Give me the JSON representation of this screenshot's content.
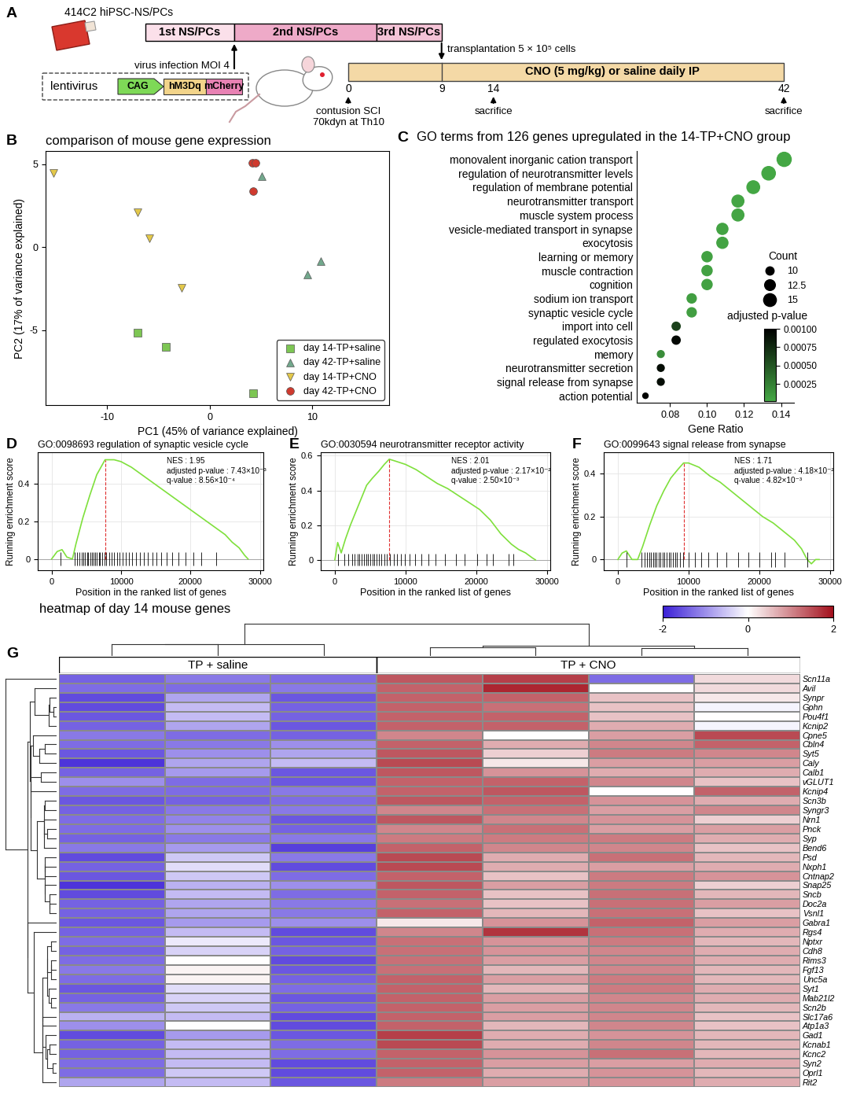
{
  "panel_A": {
    "label": "A",
    "source": "414C2 hiPSC-NS/PCs",
    "culture_stages": [
      "1st NS/PCs",
      "2nd NS/PCs",
      "3rd NS/PCs"
    ],
    "virus": "virus infection MOI 4",
    "construct": {
      "name": "lentivirus",
      "parts": [
        "CAG",
        "hM3Dq",
        "mCherry"
      ]
    },
    "transplantation": "transplantation 5 × 10⁵ cells",
    "treatment": "CNO (5 mg/kg) or saline daily IP",
    "days": [
      0,
      9,
      14,
      42
    ],
    "events": [
      {
        "day": 0,
        "label": "contusion SCI\n70kdyn at Th10"
      },
      {
        "day": 14,
        "label": "sacrifice"
      },
      {
        "day": 42,
        "label": "sacrifice"
      }
    ]
  },
  "chart_data": [
    {
      "panel": "B",
      "type": "scatter",
      "title": "comparison of mouse gene expression",
      "x_label": "PC1 (45% of variance explained)",
      "y_label": "PC2 (17% of variance explained)",
      "xlim": [
        -16,
        17.5
      ],
      "ylim": [
        -9.5,
        5.8
      ],
      "xticks": [
        -10,
        0,
        10
      ],
      "yticks": [
        -5,
        0,
        5
      ],
      "legend": "lower right",
      "series": [
        {
          "name": "day 14-TP+saline",
          "color": "#7dc653",
          "marker": "square",
          "x": [
            -7.0,
            -4.3,
            4.2
          ],
          "y": [
            -5.16,
            -6.0,
            -8.8
          ]
        },
        {
          "name": "day 42-TP+saline",
          "color": "#72a88c",
          "marker": "triangle",
          "x": [
            5.1,
            10.8,
            9.5
          ],
          "y": [
            4.27,
            -0.85,
            -1.64
          ]
        },
        {
          "name": "day 14-TP+CNO",
          "color": "#e3c84a",
          "marker": "triangle_down",
          "x": [
            -15.2,
            -7.0,
            -5.9,
            -2.7
          ],
          "y": [
            4.46,
            2.11,
            0.52,
            -2.44
          ]
        },
        {
          "name": "day 42-TP+CNO",
          "color": "#cf3a2e",
          "marker": "circle",
          "x": [
            4.15,
            4.5,
            4.2
          ],
          "y": [
            5.1,
            5.1,
            3.4
          ]
        }
      ]
    },
    {
      "panel": "C",
      "type": "dot",
      "title": "GO terms from 126 genes upregulated in the 14-TP+CNO group",
      "x_label": "Gene Ratio",
      "categories": [
        "monovalent inorganic cation transport",
        "regulation of neurotransmitter levels",
        "regulation of membrane potential",
        "neurotransmitter transport",
        "muscle system process",
        "vesicle-mediated transport in synapse",
        "exocytosis",
        "learning or memory",
        "muscle contraction",
        "cognition",
        "sodium ion transport",
        "synaptic vesicle cycle",
        "import into cell",
        "regulated exocytosis",
        "memory",
        "neurotransmitter secretion",
        "signal release from synapse",
        "action potential"
      ],
      "values": [
        0.1417,
        0.1333,
        0.125,
        0.1167,
        0.1167,
        0.1083,
        0.1083,
        0.1,
        0.1,
        0.1,
        0.0917,
        0.0917,
        0.0833,
        0.0833,
        0.075,
        0.075,
        0.075,
        0.0667
      ],
      "counts": [
        17,
        16,
        15,
        14,
        14,
        13,
        13,
        12,
        12,
        12,
        11,
        11,
        10,
        10,
        9,
        9,
        9,
        8
      ],
      "adjusted_p_values": [
        3e-05,
        3e-05,
        3e-05,
        4e-05,
        4e-05,
        5e-05,
        5e-05,
        6e-05,
        6e-05,
        6e-05,
        8e-05,
        8e-05,
        0.00062,
        0.00095,
        0.00018,
        0.00092,
        0.00092,
        0.00098
      ],
      "xlim": [
        0.062,
        0.147
      ],
      "xticks": [
        0.08,
        {
          "value": 0.1,
          "label": "0.10"
        },
        0.12,
        0.14
      ],
      "size_legend": {
        "title": "Count",
        "values": [
          10,
          12.5,
          15
        ]
      },
      "colorbar": {
        "label": "adjusted p-value",
        "range": [
          2e-05,
          0.001
        ],
        "ticks": [
          {
            "value": 0.001,
            "label": "0.00100"
          },
          {
            "value": 0.00075,
            "label": "0.00075"
          },
          {
            "value": 0.0005,
            "label": "0.00050"
          },
          {
            "value": 0.00025,
            "label": "0.00025"
          }
        ],
        "colors": [
          "#45a845",
          "#000000"
        ]
      }
    },
    {
      "panel": "D",
      "type": "line",
      "title": "GO:0098693 regulation of synaptic vesicle cycle",
      "x_label": "Position in the ranked list of genes",
      "y_label": "Running enrichment score",
      "color": "#7fe03c",
      "grid": true,
      "x": [
        0,
        800,
        1500,
        2200,
        3000,
        3500,
        4500,
        5500,
        6500,
        7700,
        9000,
        10000,
        11500,
        13000,
        14500,
        16000,
        17500,
        19000,
        20500,
        22000,
        23500,
        25000,
        26000,
        27000,
        27800,
        28300
      ],
      "values": [
        0,
        0.04,
        0.05,
        0.01,
        0.0,
        0.08,
        0.22,
        0.34,
        0.45,
        0.53,
        0.53,
        0.52,
        0.49,
        0.45,
        0.41,
        0.37,
        0.33,
        0.29,
        0.25,
        0.21,
        0.17,
        0.13,
        0.09,
        0.06,
        0.02,
        0.0
      ],
      "hits": [
        1300,
        3300,
        3700,
        4000,
        4300,
        4600,
        4800,
        5100,
        5300,
        5600,
        5800,
        6000,
        6300,
        6500,
        6800,
        7000,
        7300,
        7600,
        7900,
        8300,
        8700,
        9000,
        9400,
        9800,
        10200,
        10700,
        11100,
        11600,
        12100,
        12700,
        13300,
        13900,
        14500,
        15100,
        15800,
        16600,
        17400,
        18300,
        19300,
        20400,
        21600,
        23700
      ],
      "annotations": [
        "NES : 1.95",
        "adjusted p-value : 7.43×10⁻³",
        "q-value : 8.56×10⁻⁴"
      ],
      "xlim": [
        -2000,
        30500
      ],
      "ylim": [
        -0.06,
        0.57
      ],
      "xticks": [
        0,
        10000,
        20000,
        30000
      ],
      "yticks": [
        0,
        0.2,
        0.4
      ]
    },
    {
      "panel": "E",
      "type": "line",
      "title": "GO:0030594 neurotransmitter receptor activity",
      "x_label": "Position in the ranked list of genes",
      "y_label": "Running enrichment score",
      "color": "#7fe03c",
      "grid": true,
      "x": [
        0,
        400,
        900,
        1500,
        2200,
        3000,
        3800,
        4500,
        5300,
        6200,
        7000,
        7700,
        8500,
        10000,
        11500,
        13000,
        14500,
        16000,
        17500,
        19000,
        20500,
        22000,
        23500,
        25000,
        26000,
        27000,
        28000,
        28400
      ],
      "values": [
        0,
        0.1,
        0.04,
        0.12,
        0.2,
        0.28,
        0.36,
        0.43,
        0.47,
        0.51,
        0.55,
        0.58,
        0.57,
        0.55,
        0.52,
        0.48,
        0.44,
        0.41,
        0.37,
        0.33,
        0.29,
        0.23,
        0.15,
        0.09,
        0.06,
        0.04,
        0.01,
        0.0
      ],
      "hits": [
        500,
        1300,
        1900,
        2400,
        2800,
        3200,
        3500,
        3800,
        4100,
        4400,
        4700,
        5000,
        5300,
        5600,
        5900,
        6200,
        6600,
        7000,
        7400,
        7800,
        8300,
        8800,
        9300,
        9900,
        10600,
        11400,
        12300,
        13200,
        14300,
        15600,
        17100,
        18400,
        20100,
        21500,
        22400,
        24600,
        25300
      ],
      "annotations": [
        "NES : 2.01",
        "adjusted p-value : 2.17×10⁻²",
        "q-value : 2.50×10⁻³"
      ],
      "xlim": [
        -2000,
        30500
      ],
      "ylim": [
        -0.06,
        0.62
      ],
      "xticks": [
        0,
        10000,
        20000,
        30000
      ],
      "yticks": [
        0,
        0.2,
        0.4,
        0.6
      ]
    },
    {
      "panel": "F",
      "type": "line",
      "title": "GO:0099643 signal release from synapse",
      "x_label": "Position in the ranked list of genes",
      "y_label": "Running enrichment score",
      "color": "#7fe03c",
      "grid": true,
      "x": [
        0,
        600,
        1200,
        2000,
        2800,
        3500,
        4500,
        5500,
        6500,
        7500,
        8500,
        9300,
        10000,
        11500,
        13000,
        14500,
        16000,
        17500,
        19000,
        20500,
        22000,
        23500,
        25000,
        26000,
        26800,
        27400,
        28000,
        28500
      ],
      "values": [
        0,
        0.03,
        0.04,
        0.0,
        0.0,
        0.06,
        0.16,
        0.25,
        0.32,
        0.38,
        0.42,
        0.45,
        0.45,
        0.43,
        0.39,
        0.36,
        0.32,
        0.28,
        0.24,
        0.2,
        0.17,
        0.13,
        0.09,
        0.05,
        0.0,
        -0.02,
        0.0,
        0.0
      ],
      "hits": [
        1200,
        3300,
        3800,
        4100,
        4400,
        4700,
        5000,
        5200,
        5500,
        5800,
        6000,
        6300,
        6600,
        6900,
        7200,
        7500,
        7800,
        8100,
        8400,
        8800,
        9200,
        10000,
        10900,
        11800,
        12800,
        14000,
        15400,
        17000,
        18500,
        20000,
        21700,
        22300,
        23600,
        26800
      ],
      "annotations": [
        "NES : 1.71",
        "adjusted p-value : 4.18×10⁻²",
        "q-value : 4.82×10⁻³"
      ],
      "xlim": [
        -2000,
        30500
      ],
      "ylim": [
        -0.05,
        0.5
      ],
      "xticks": [
        0,
        10000,
        20000,
        30000
      ],
      "yticks": [
        0,
        0.2,
        0.4
      ]
    },
    {
      "panel": "G",
      "type": "heatmap",
      "title": "heatmap of day 14 mouse genes",
      "rows": [
        "Scn11a",
        "Avil",
        "Synpr",
        "Gphn",
        "Pou4f1",
        "Kcnip2",
        "Cpne5",
        "Cbln4",
        "Syt5",
        "Caly",
        "Calb1",
        "vGLUT1",
        "Kcnip4",
        "Scn3b",
        "Syngr3",
        "Nrn1",
        "Pnck",
        "Syp",
        "Bend6",
        "Psd",
        "Nxph1",
        "Cntnap2",
        "Snap25",
        "Sncb",
        "Doc2a",
        "Vsnl1",
        "Gabra1",
        "Rgs4",
        "Nptxr",
        "Cdh8",
        "Rims3",
        "Fgf13",
        "Unc5a",
        "Syt1",
        "Mab21l2",
        "Scn2b",
        "Slc17a6",
        "Atp1a3",
        "Gad1",
        "Kcnab1",
        "Kcnc2",
        "Syn2",
        "Oprl1",
        "Rit2"
      ],
      "column_groups": [
        {
          "label": "TP + saline",
          "columns": 3
        },
        {
          "label": "TP + CNO",
          "columns": 4
        }
      ],
      "cells": [
        [
          -1.4,
          -1.2,
          -1.3,
          1.4,
          1.6,
          -1.3,
          0.3
        ],
        [
          -1.3,
          -1.3,
          -1.2,
          1.3,
          1.8,
          0.0,
          0.3
        ],
        [
          -1.6,
          -0.8,
          -1.5,
          1.3,
          1.3,
          0.5,
          0.2
        ],
        [
          -1.6,
          -0.6,
          -1.4,
          1.3,
          1.2,
          0.5,
          -0.1
        ],
        [
          -1.5,
          -0.6,
          -1.4,
          1.3,
          1.3,
          0.5,
          0.0
        ],
        [
          -1.4,
          -0.8,
          -1.5,
          1.3,
          1.3,
          0.7,
          -0.1
        ],
        [
          -1.2,
          -1.3,
          -1.4,
          1.0,
          0.0,
          0.8,
          1.5
        ],
        [
          -1.3,
          -1.2,
          -1.0,
          1.3,
          0.7,
          1.0,
          1.3
        ],
        [
          -1.5,
          -1.0,
          -0.8,
          1.4,
          0.4,
          1.1,
          1.0
        ],
        [
          -1.8,
          -0.8,
          -0.6,
          1.5,
          0.2,
          0.8,
          0.8
        ],
        [
          -1.4,
          -0.9,
          -1.5,
          1.4,
          0.9,
          0.7,
          0.7
        ],
        [
          -1.0,
          -1.3,
          -1.5,
          1.3,
          1.3,
          1.0,
          0.5
        ],
        [
          -1.3,
          -1.3,
          -1.2,
          1.3,
          1.4,
          0.0,
          1.3
        ],
        [
          -1.5,
          -1.4,
          -1.3,
          1.4,
          1.3,
          0.9,
          0.7
        ],
        [
          -1.4,
          -1.2,
          -1.2,
          1.0,
          1.2,
          0.8,
          1.0
        ],
        [
          -1.3,
          -1.1,
          -1.5,
          1.4,
          1.0,
          0.9,
          0.4
        ],
        [
          -1.3,
          -1.0,
          -1.4,
          1.0,
          1.2,
          0.8,
          0.8
        ],
        [
          -1.4,
          -1.2,
          -1.2,
          1.1,
          1.1,
          1.1,
          0.7
        ],
        [
          -1.2,
          -0.9,
          -1.7,
          1.3,
          1.0,
          1.0,
          0.5
        ],
        [
          -1.6,
          -0.5,
          -1.2,
          1.5,
          0.7,
          1.2,
          0.6
        ],
        [
          -1.4,
          -0.3,
          -1.6,
          1.5,
          0.7,
          0.8,
          0.7
        ],
        [
          -1.5,
          -0.5,
          -1.3,
          1.3,
          0.5,
          1.1,
          0.9
        ],
        [
          -1.8,
          -0.7,
          -1.0,
          1.4,
          0.8,
          1.1,
          0.4
        ],
        [
          -1.6,
          -0.6,
          -1.3,
          1.3,
          0.5,
          1.2,
          0.6
        ],
        [
          -1.4,
          -0.8,
          -1.2,
          1.2,
          0.5,
          1.2,
          0.8
        ],
        [
          -1.4,
          -0.8,
          -1.2,
          1.3,
          0.6,
          1.2,
          0.5
        ],
        [
          -1.5,
          -0.9,
          -1.0,
          0.2,
          0.9,
          1.3,
          0.8
        ],
        [
          -1.4,
          -0.6,
          -1.6,
          1.0,
          1.7,
          1.2,
          0.7
        ],
        [
          -1.3,
          -0.2,
          -1.5,
          1.2,
          0.9,
          1.1,
          0.6
        ],
        [
          -1.4,
          -0.4,
          -1.4,
          1.2,
          0.9,
          1.0,
          0.7
        ],
        [
          -1.3,
          0.0,
          -1.6,
          1.2,
          0.8,
          1.0,
          0.7
        ],
        [
          -1.2,
          0.1,
          -1.5,
          1.2,
          0.6,
          1.0,
          0.6
        ],
        [
          -1.3,
          0.1,
          -1.4,
          1.3,
          0.8,
          1.1,
          0.6
        ],
        [
          -1.5,
          -0.3,
          -1.3,
          1.3,
          0.6,
          1.1,
          0.7
        ],
        [
          -1.4,
          -0.4,
          -1.5,
          1.3,
          0.8,
          1.0,
          0.7
        ],
        [
          -1.2,
          -0.5,
          -1.4,
          1.3,
          0.8,
          1.0,
          0.6
        ],
        [
          -0.7,
          -0.6,
          -1.6,
          1.3,
          0.8,
          1.0,
          0.5
        ],
        [
          -1.0,
          0.0,
          -1.6,
          1.3,
          0.6,
          1.0,
          0.5
        ],
        [
          -1.6,
          -0.9,
          -1.5,
          1.6,
          0.7,
          0.9,
          0.6
        ],
        [
          -1.4,
          -0.6,
          -1.3,
          1.5,
          0.7,
          1.0,
          0.6
        ],
        [
          -1.4,
          -0.6,
          -1.3,
          1.3,
          0.9,
          1.2,
          0.6
        ],
        [
          -1.3,
          -0.6,
          -1.6,
          1.3,
          0.8,
          0.8,
          0.7
        ],
        [
          -1.3,
          -0.5,
          -1.6,
          1.3,
          0.7,
          0.9,
          0.6
        ],
        [
          -0.8,
          -0.6,
          -1.5,
          1.1,
          0.8,
          0.9,
          0.7
        ]
      ],
      "colorbar": {
        "range": [
          -2,
          2
        ],
        "ticks": [
          -2,
          0,
          2
        ],
        "colors": [
          "#3a1fd6",
          "#ffffff",
          "#a3101c"
        ]
      }
    }
  ]
}
